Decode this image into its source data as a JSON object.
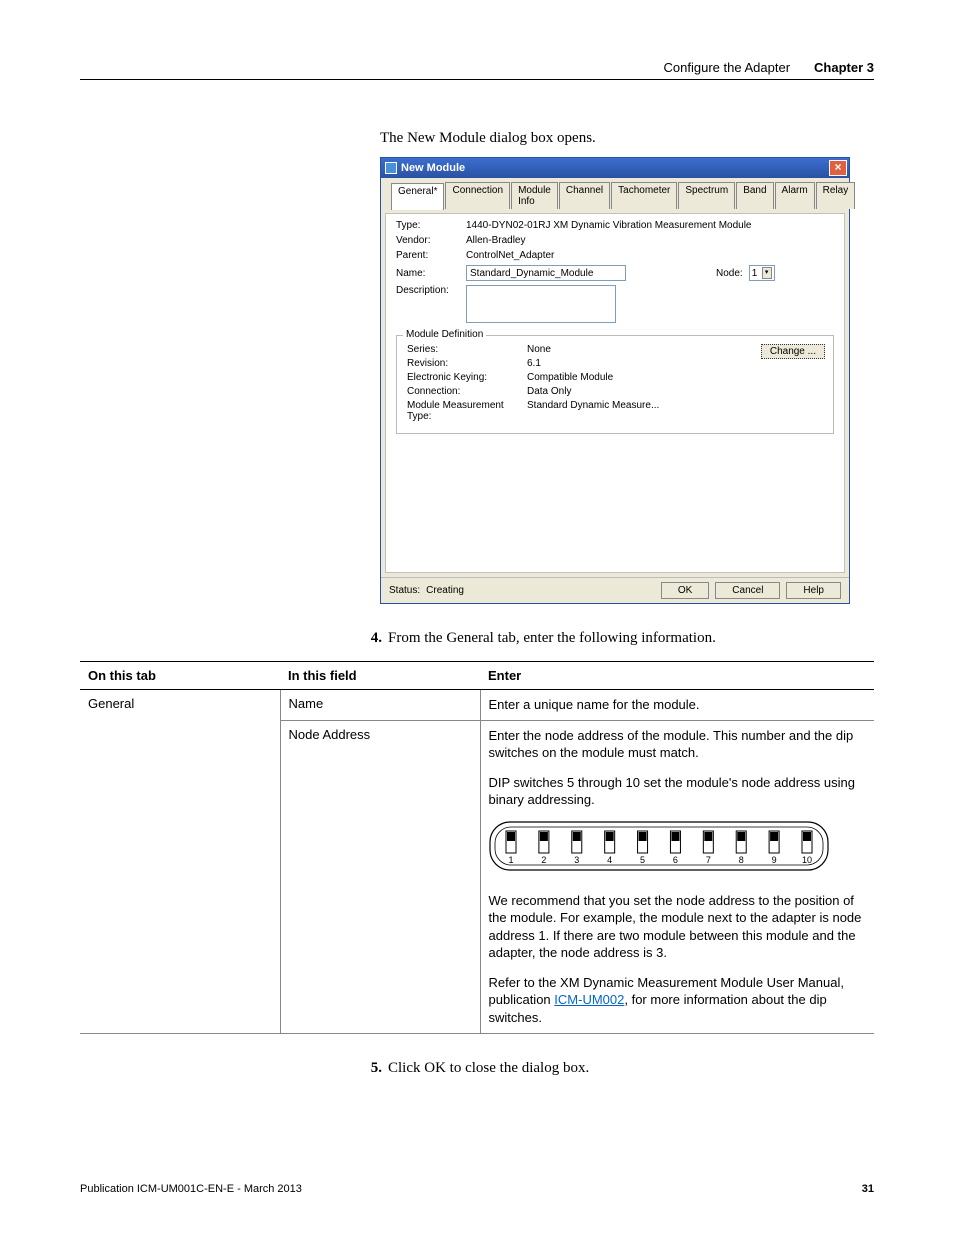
{
  "header": {
    "section_title": "Configure the Adapter",
    "chapter_label": "Chapter 3"
  },
  "intro": "The New Module dialog box opens.",
  "dialog": {
    "title": "New Module",
    "tabs": [
      "General*",
      "Connection",
      "Module Info",
      "Channel",
      "Tachometer",
      "Spectrum",
      "Band",
      "Alarm",
      "Relay"
    ],
    "fields": {
      "type_label": "Type:",
      "type_value": "1440-DYN02-01RJ XM Dynamic Vibration Measurement Module",
      "vendor_label": "Vendor:",
      "vendor_value": "Allen-Bradley",
      "parent_label": "Parent:",
      "parent_value": "ControlNet_Adapter",
      "name_label": "Name:",
      "name_value": "Standard_Dynamic_Module",
      "node_label": "Node:",
      "node_value": "1",
      "desc_label": "Description:"
    },
    "module_def": {
      "legend": "Module Definition",
      "series_label": "Series:",
      "series_value": "None",
      "revision_label": "Revision:",
      "revision_value": "6.1",
      "keying_label": "Electronic Keying:",
      "keying_value": "Compatible Module",
      "connection_label": "Connection:",
      "connection_value": "Data Only",
      "meas_label": "Module Measurement Type:",
      "meas_value": "Standard Dynamic Measure...",
      "change_btn": "Change ..."
    },
    "footer": {
      "status_label": "Status:",
      "status_value": "Creating",
      "ok": "OK",
      "cancel": "Cancel",
      "help": "Help"
    }
  },
  "step4": {
    "num": "4.",
    "text": "From the General tab, enter the following information."
  },
  "table": {
    "headers": [
      "On this tab",
      "In this field",
      "Enter"
    ],
    "rows": [
      {
        "tab": "General",
        "field": "Name",
        "enter_paras": [
          "Enter a unique name for the module."
        ]
      },
      {
        "tab": "",
        "field": "Node Address",
        "enter_paras": [
          "Enter the node address of the module. This number and the dip switches on the module must match.",
          "DIP switches 5 through 10 set the module's node address using binary addressing.",
          "__DIP__",
          "We recommend that you set the node address to the position of the module. For example, the module next to the adapter is node address 1. If there are two module between this module and the adapter, the node address is 3.",
          "Refer to the XM Dynamic Measurement Module User Manual, publication __LINK__, for more information about the dip switches."
        ],
        "link_text": "ICM-UM002"
      }
    ],
    "dip_labels": [
      "1",
      "2",
      "3",
      "4",
      "5",
      "6",
      "7",
      "8",
      "9",
      "10"
    ]
  },
  "step5": {
    "num": "5.",
    "text": "Click OK to close the dialog box."
  },
  "footer": {
    "pub": "Publication ICM-UM001C-EN-E - March 2013",
    "page": "31"
  },
  "colors": {
    "titlebar_start": "#3b6ecf",
    "titlebar_end": "#2a52a3",
    "dialog_bg": "#ece9d8",
    "close_btn": "#e06040",
    "link": "#0066cc"
  }
}
